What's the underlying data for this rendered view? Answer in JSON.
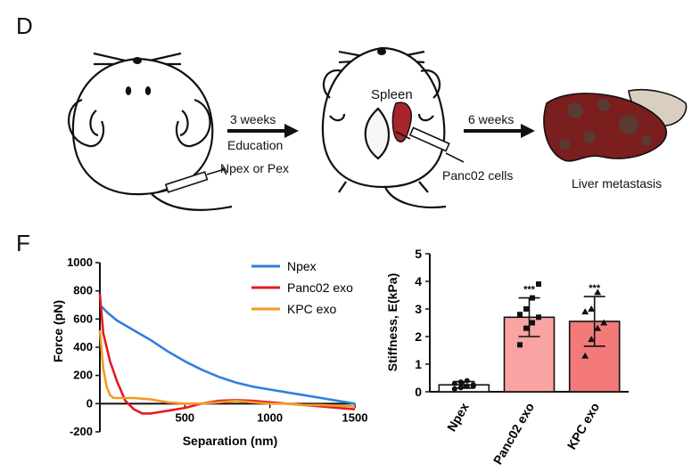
{
  "panel_d": {
    "label": "D",
    "arrow1_top": "3 weeks",
    "arrow1_bottom": "Education",
    "syringe1_label": "Npex or Pex",
    "organ_label": "Spleen",
    "arrow2_top": "6 weeks",
    "syringe2_label": "Panc02 cells",
    "result_label": "Liver metastasis",
    "colors": {
      "spleen": "#a8232b",
      "liver": "#7a1e1e",
      "liver_spots": "#5a3a32",
      "gallbladder": "#d8cfc0"
    }
  },
  "panel_f": {
    "label": "F",
    "colors": {
      "npex": "#2f7fe0",
      "panc02": "#e31b23",
      "kpc": "#f49a24",
      "bar_panc02": "#f9a3a3",
      "bar_kpc": "#f47a7a"
    }
  },
  "chart_data": [
    {
      "type": "line",
      "xlabel": "Separation (nm)",
      "ylabel": "Force (pN)",
      "xlim": [
        0,
        1500
      ],
      "ylim": [
        -200,
        1000
      ],
      "xticks": [
        "500",
        "1000",
        "1500"
      ],
      "yticks": [
        "-200",
        "0",
        "200",
        "400",
        "600",
        "800",
        "1000"
      ],
      "legend_position": "top-right",
      "series": [
        {
          "name": "Npex",
          "x": [
            0,
            50,
            100,
            200,
            300,
            400,
            500,
            600,
            700,
            800,
            900,
            1000,
            1100,
            1200,
            1300,
            1400,
            1500
          ],
          "y": [
            700,
            640,
            590,
            520,
            450,
            370,
            300,
            240,
            190,
            150,
            120,
            100,
            80,
            60,
            40,
            20,
            0
          ]
        },
        {
          "name": "Panc02 exo",
          "x": [
            0,
            20,
            60,
            100,
            150,
            200,
            250,
            300,
            400,
            500,
            600,
            700,
            800,
            900,
            1000,
            1100,
            1200,
            1300,
            1400,
            1500
          ],
          "y": [
            780,
            500,
            300,
            160,
            20,
            -40,
            -70,
            -70,
            -50,
            -30,
            0,
            20,
            25,
            20,
            10,
            0,
            -10,
            -20,
            -30,
            -40
          ]
        },
        {
          "name": "KPC exo",
          "x": [
            0,
            20,
            40,
            60,
            80,
            100,
            150,
            200,
            300,
            400,
            500,
            600,
            700,
            800,
            900,
            1000,
            1100,
            1200,
            1300,
            1400,
            1500
          ],
          "y": [
            520,
            250,
            120,
            60,
            40,
            40,
            40,
            40,
            30,
            10,
            0,
            0,
            10,
            20,
            10,
            0,
            0,
            -10,
            -10,
            -15,
            -20
          ]
        }
      ]
    },
    {
      "type": "bar",
      "ylabel": "Stiffness, E(kPa)",
      "categories": [
        "Npex",
        "Panc02 exo",
        "KPC exo"
      ],
      "values": [
        0.25,
        2.7,
        2.55
      ],
      "errors": [
        0.12,
        0.7,
        0.9
      ],
      "significance": [
        "",
        "***",
        "***"
      ],
      "ylim": [
        0,
        5
      ],
      "yticks": [
        "0",
        "1",
        "2",
        "3",
        "4",
        "5"
      ],
      "points": [
        [
          0.1,
          0.15,
          0.2,
          0.25,
          0.3,
          0.35,
          0.4,
          0.2
        ],
        [
          1.7,
          2.3,
          2.5,
          2.7,
          2.8,
          3.0,
          3.4,
          3.9
        ],
        [
          1.3,
          1.9,
          2.3,
          2.5,
          2.9,
          3.0,
          3.6
        ]
      ]
    }
  ]
}
